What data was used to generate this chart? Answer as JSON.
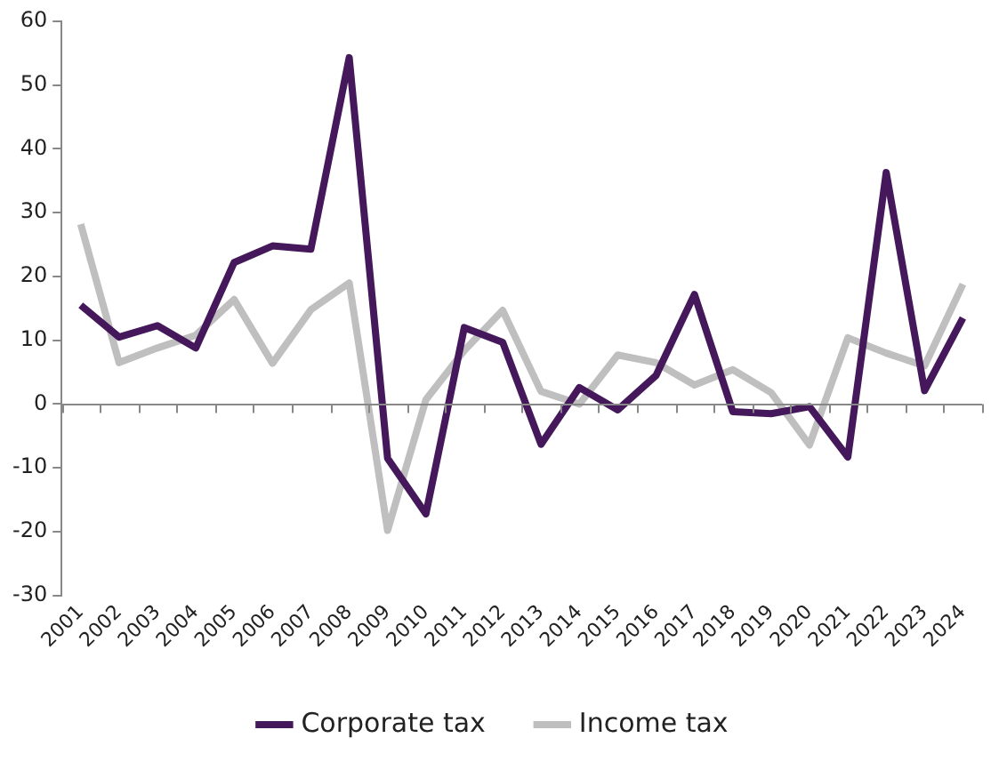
{
  "chart_data": {
    "type": "line",
    "categories": [
      "2001",
      "2002",
      "2003",
      "2004",
      "2005",
      "2006",
      "2007",
      "2008",
      "2009",
      "2010",
      "2011",
      "2012",
      "2013",
      "2014",
      "2015",
      "2016",
      "2017",
      "2018",
      "2019",
      "2020",
      "2021",
      "2022",
      "2023",
      "2024"
    ],
    "series": [
      {
        "name": "Corporate tax",
        "color": "#44185a",
        "values": [
          15.5,
          10.5,
          12.3,
          8.8,
          22.2,
          24.8,
          24.3,
          54.3,
          -8.5,
          -17.2,
          12,
          9.7,
          -6.3,
          2.6,
          -0.9,
          4.5,
          17.2,
          -1.2,
          -1.5,
          -0.4,
          -8.3,
          36.3,
          2.1,
          13.5
        ]
      },
      {
        "name": "Income tax",
        "color": "#bfbfbf",
        "values": [
          28.2,
          6.5,
          8.8,
          10.8,
          16.4,
          6.4,
          14.8,
          19,
          -19.8,
          0.7,
          8.4,
          14.7,
          2,
          0,
          7.7,
          6.5,
          3,
          5.4,
          1.8,
          -6.4,
          10.4,
          8,
          6,
          18.8
        ]
      }
    ],
    "ylim": [
      -30,
      60
    ],
    "yticks": [
      -30,
      -20,
      -10,
      0,
      10,
      20,
      30,
      40,
      50,
      60
    ],
    "grid": false,
    "ref_lines": [
      {
        "axis": "y",
        "value": 0,
        "color": "#888888"
      }
    ],
    "legend": "bottom",
    "marker": "none",
    "line_style": "solid"
  }
}
